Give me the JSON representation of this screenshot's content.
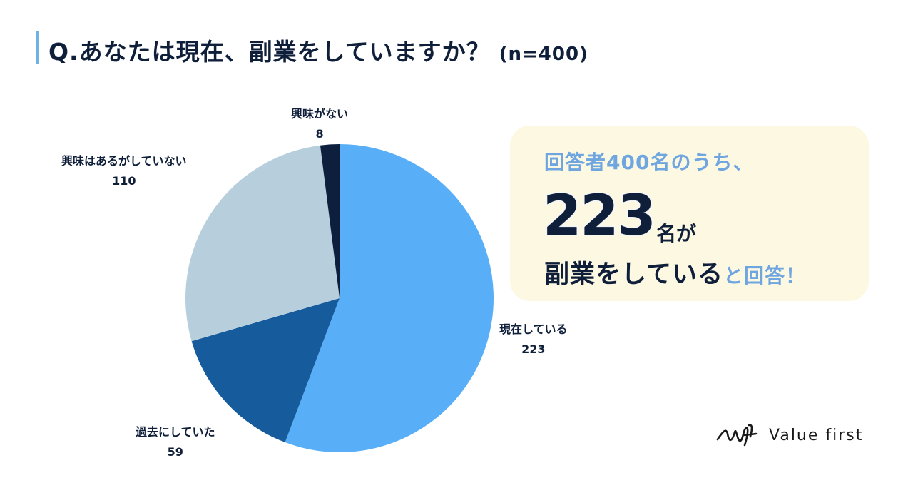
{
  "title": {
    "question": "Q.あなたは現在、副業をしていますか？",
    "sample": "(n=400)"
  },
  "chart_data": {
    "type": "pie",
    "title": "Q.あなたは現在、副業をしていますか？",
    "total": 400,
    "start_angle_deg": 0,
    "direction": "clockwise",
    "slices": [
      {
        "label": "現在している",
        "value": 223,
        "color": "#58aef7"
      },
      {
        "label": "過去にしていた",
        "value": 59,
        "color": "#165b9c"
      },
      {
        "label": "興味はあるがしていない",
        "value": 110,
        "color": "#b7cfdc"
      },
      {
        "label": "興味がない",
        "value": 8,
        "color": "#0e1f3e"
      }
    ]
  },
  "callout": {
    "line1": "回答者400名のうち、",
    "big_number": "223",
    "unit": "名が",
    "line3_strong": "副業をしている",
    "line3_accent": "と回答！"
  },
  "logo": {
    "text": "Value first",
    "icon": "wf-signature-logo"
  },
  "colors": {
    "accent_bar": "#6fb2e6",
    "callout_bg": "#fdf8e2",
    "callout_accent": "#6fa6e0",
    "text_dark": "#0f1f3a"
  }
}
